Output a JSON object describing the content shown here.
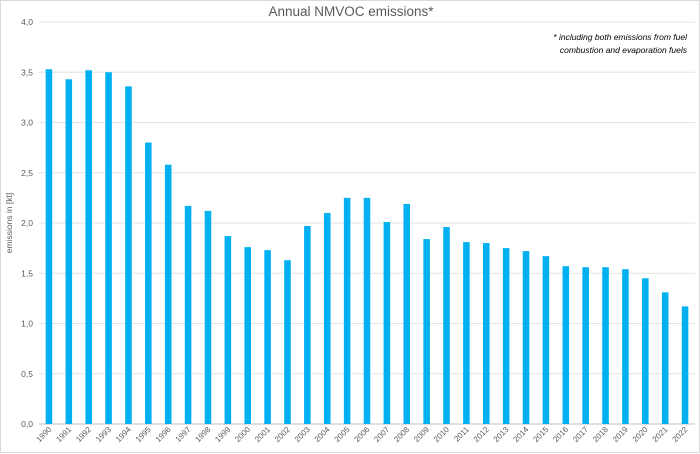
{
  "chart_data": {
    "type": "bar",
    "title": "Annual NMVOC emissions*",
    "ylabel": "emissions in [kt]",
    "xlabel": "",
    "ylim": [
      0,
      4
    ],
    "yticks": [
      0,
      0.5,
      1,
      1.5,
      2,
      2.5,
      3,
      3.5,
      4
    ],
    "ytick_labels": [
      "0,0",
      "0,5",
      "1,0",
      "1,5",
      "2,0",
      "2,5",
      "3,0",
      "3,5",
      "4,0"
    ],
    "grid": true,
    "bar_color": "#00b0f0",
    "footnote": [
      "* including both emissions from fuel",
      "combustion and evaporation fuels"
    ],
    "categories": [
      "1990",
      "1991",
      "1992",
      "1993",
      "1994",
      "1995",
      "1996",
      "1997",
      "1998",
      "1999",
      "2000",
      "2001",
      "2002",
      "2003",
      "2004",
      "2005",
      "2006",
      "2007",
      "2008",
      "2009",
      "2010",
      "2011",
      "2012",
      "2013",
      "2014",
      "2015",
      "2016",
      "2017",
      "2018",
      "2019",
      "2020",
      "2021",
      "2022"
    ],
    "values": [
      3.53,
      3.43,
      3.52,
      3.5,
      3.36,
      2.8,
      2.58,
      2.17,
      2.12,
      1.87,
      1.76,
      1.73,
      1.63,
      1.97,
      2.1,
      2.25,
      2.25,
      2.01,
      2.19,
      1.84,
      1.96,
      1.81,
      1.8,
      1.75,
      1.72,
      1.67,
      1.57,
      1.56,
      1.56,
      1.54,
      1.45,
      1.31,
      1.17
    ]
  }
}
